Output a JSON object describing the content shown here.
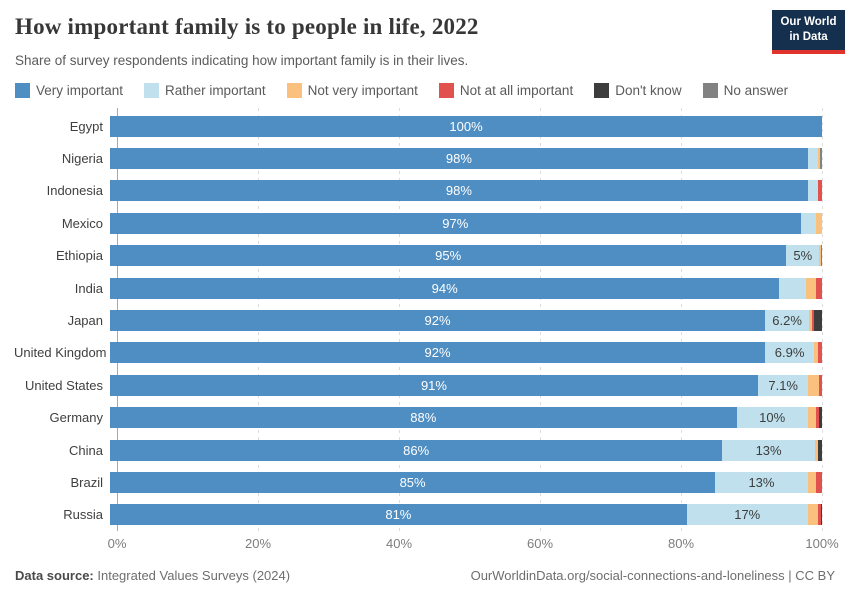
{
  "header": {
    "title": "How important family is to people in life, 2022",
    "subtitle": "Share of survey respondents indicating how important family is in their lives.",
    "logo": {
      "line1": "Our World",
      "line2": "in Data"
    }
  },
  "colors": {
    "very_important": "#4f8ec2",
    "rather_important": "#bfe0ec",
    "not_very_important": "#fac07d",
    "not_at_all_important": "#e1514e",
    "dont_know": "#3d3d3d",
    "no_answer": "#828282"
  },
  "legend": [
    {
      "label": "Very important",
      "color": "#4f8ec2"
    },
    {
      "label": "Rather important",
      "color": "#bfe0ec"
    },
    {
      "label": "Not very important",
      "color": "#fac07d"
    },
    {
      "label": "Not at all important",
      "color": "#e1514e"
    },
    {
      "label": "Don't know",
      "color": "#3d3d3d"
    },
    {
      "label": "No answer",
      "color": "#828282"
    }
  ],
  "chart_data": {
    "type": "bar",
    "stacked": true,
    "orientation": "horizontal",
    "categories": [
      "Egypt",
      "Nigeria",
      "Indonesia",
      "Mexico",
      "Ethiopia",
      "India",
      "Japan",
      "United Kingdom",
      "United States",
      "Germany",
      "China",
      "Brazil",
      "Russia"
    ],
    "series": [
      {
        "name": "Very important",
        "color": "#4f8ec2",
        "values": [
          100,
          98,
          98,
          97,
          95,
          94,
          92,
          92,
          91,
          88,
          86,
          85,
          81
        ]
      },
      {
        "name": "Rather important",
        "color": "#bfe0ec",
        "values": [
          0,
          1.5,
          1.4,
          2.2,
          4.6,
          3.7,
          6.2,
          6.9,
          7.1,
          10,
          13,
          13,
          17
        ]
      },
      {
        "name": "Not very important",
        "color": "#fac07d",
        "values": [
          0,
          0.2,
          0,
          0.8,
          0.2,
          1.5,
          0.4,
          0.6,
          1.5,
          1.2,
          0.5,
          1.2,
          1.4
        ]
      },
      {
        "name": "Not at all important",
        "color": "#e1514e",
        "values": [
          0,
          0,
          0.6,
          0,
          0.2,
          0.8,
          0.3,
          0.5,
          0.4,
          0.4,
          0,
          0.8,
          0.4
        ]
      },
      {
        "name": "Don't know",
        "color": "#3d3d3d",
        "values": [
          0,
          0,
          0,
          0,
          0,
          0,
          1.1,
          0,
          0,
          0.4,
          0.5,
          0,
          0.2
        ]
      },
      {
        "name": "No answer",
        "color": "#828282",
        "values": [
          0,
          0.3,
          0,
          0,
          0,
          0,
          0,
          0,
          0,
          0,
          0,
          0,
          0
        ]
      }
    ],
    "bar_labels_primary": [
      "100%",
      "98%",
      "98%",
      "97%",
      "95%",
      "94%",
      "92%",
      "92%",
      "91%",
      "88%",
      "86%",
      "85%",
      "81%"
    ],
    "bar_labels_secondary": [
      "",
      "",
      "",
      "",
      "5%",
      "",
      "6.2%",
      "6.9%",
      "7.1%",
      "10%",
      "13%",
      "13%",
      "17%"
    ],
    "x_ticks": [
      "0%",
      "20%",
      "40%",
      "60%",
      "80%",
      "100%"
    ],
    "x_tick_positions": [
      0,
      20,
      40,
      60,
      80,
      100
    ],
    "xlim": [
      0,
      100
    ],
    "grid": true,
    "legend_position": "top"
  },
  "footer": {
    "source_label": "Data source:",
    "source_value": " Integrated Values Surveys (2024)",
    "credit": "OurWorldinData.org/social-connections-and-loneliness | CC BY"
  }
}
